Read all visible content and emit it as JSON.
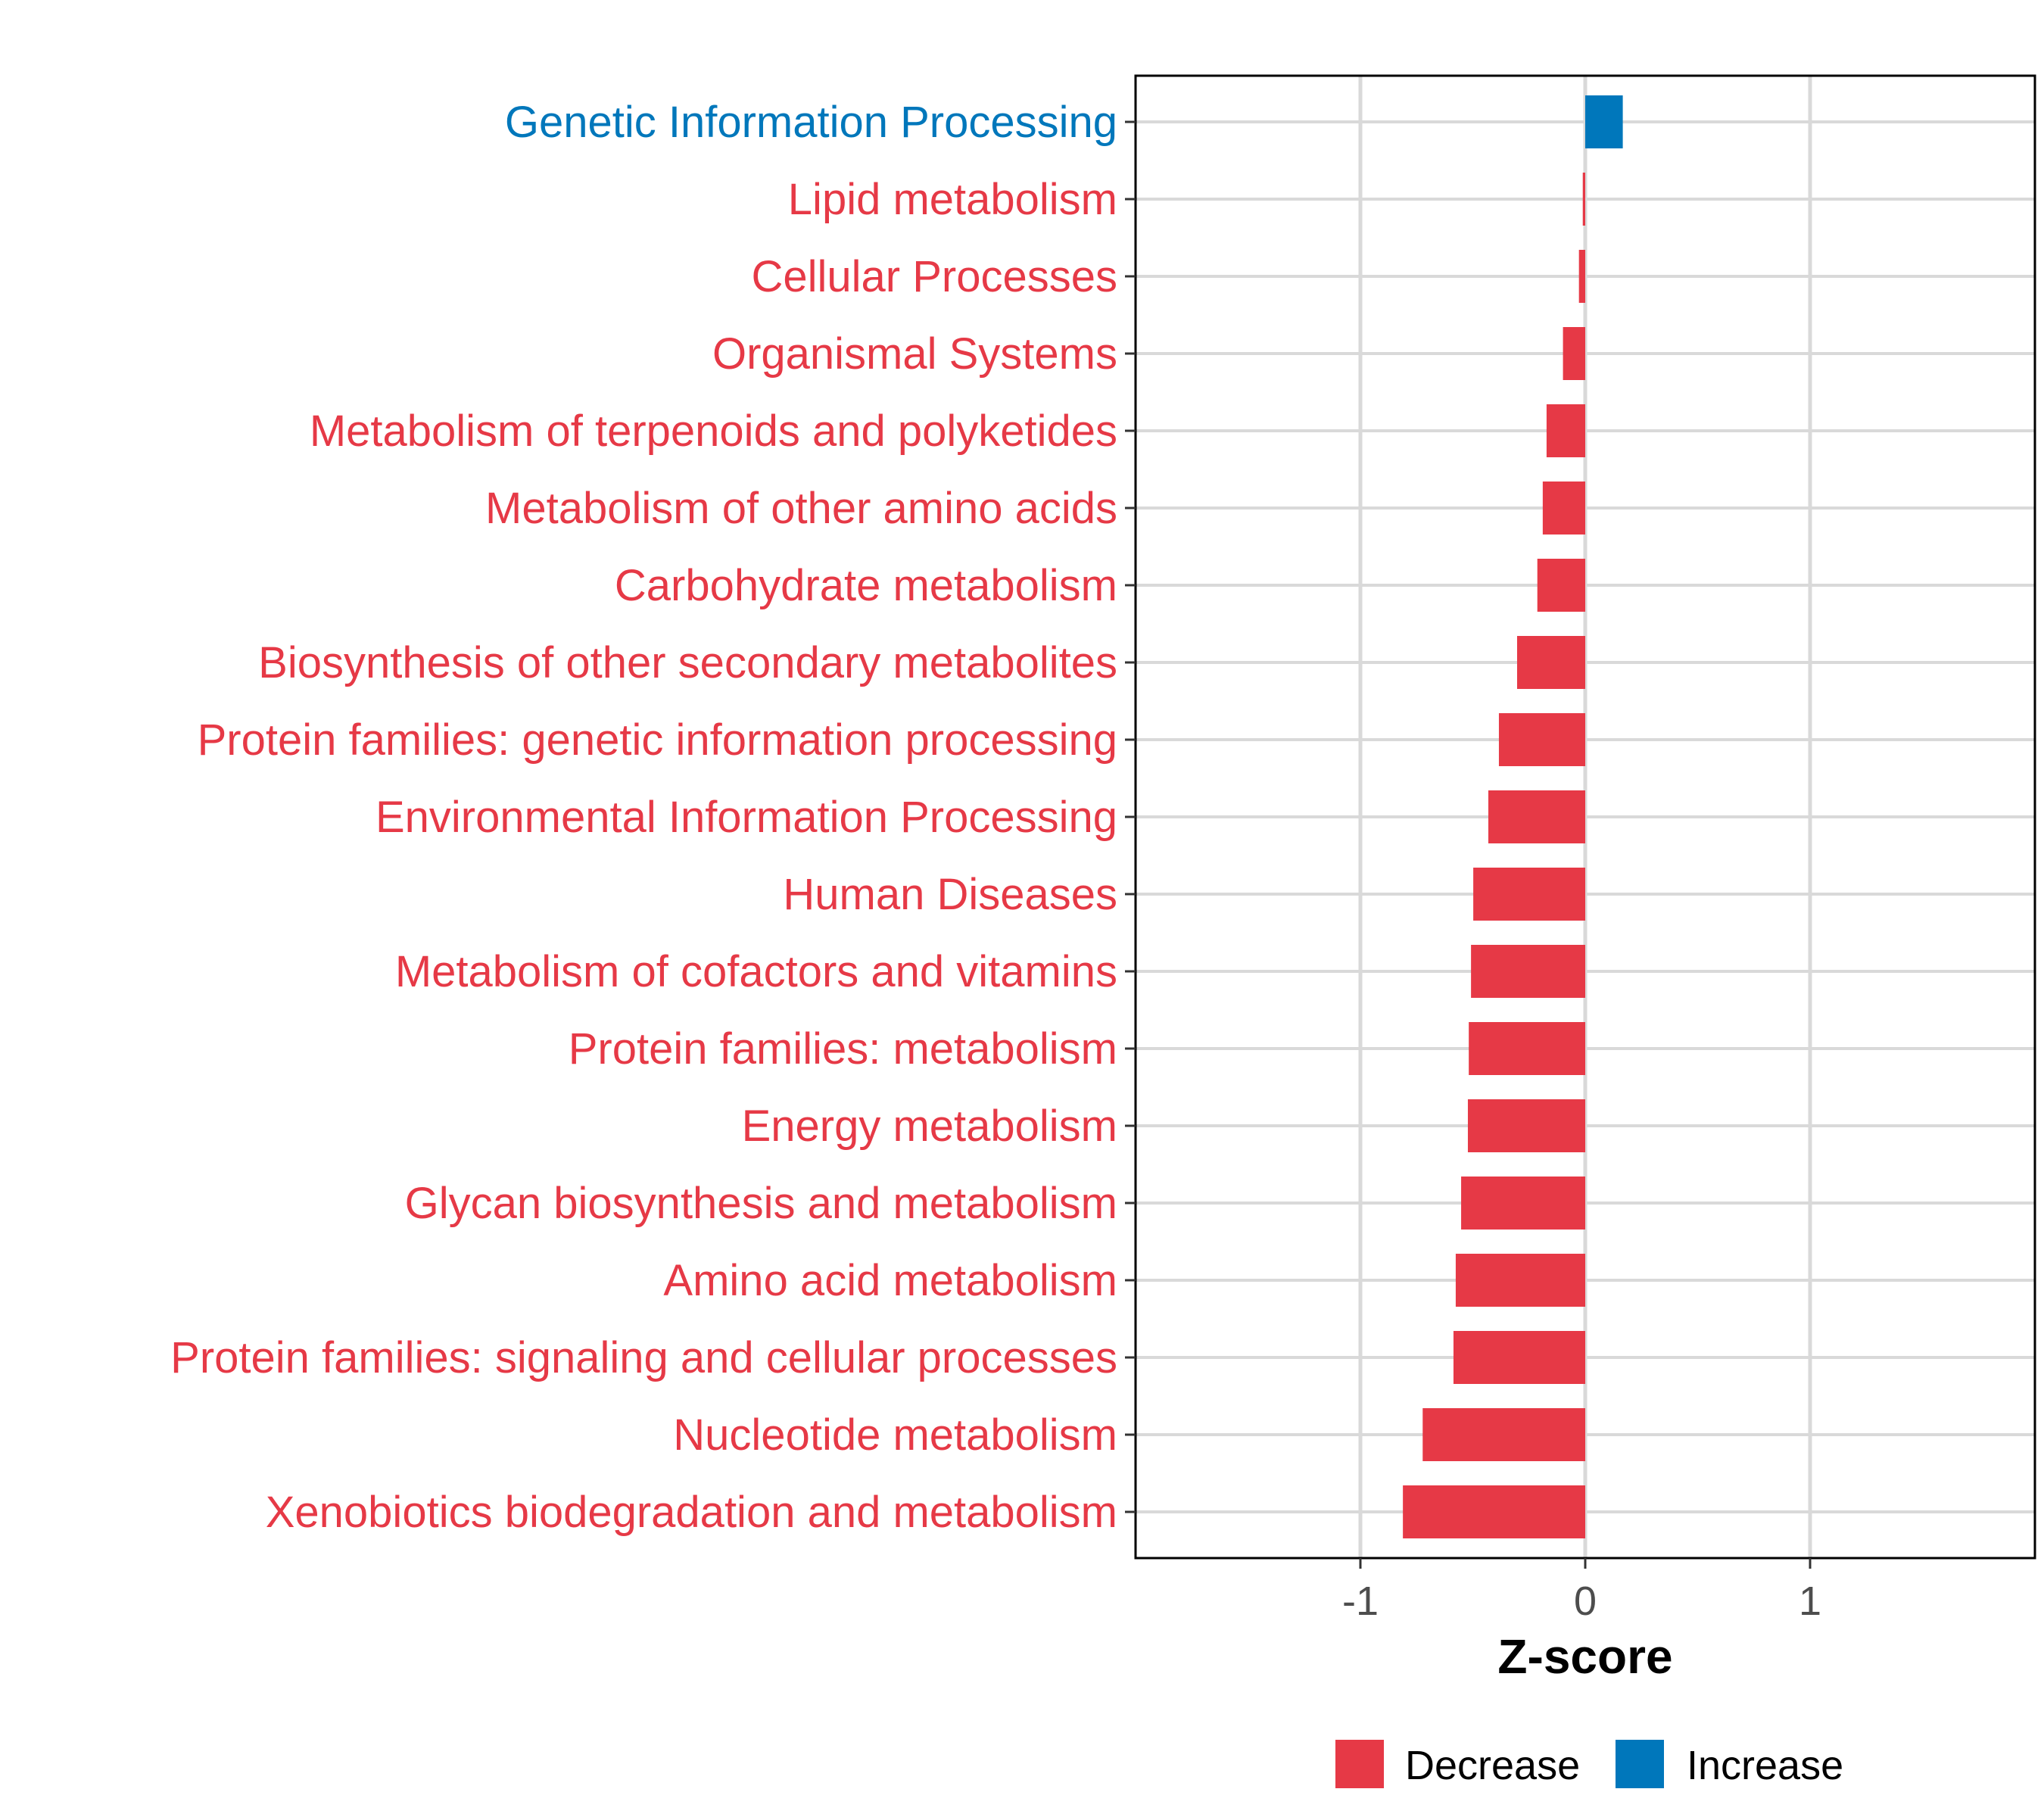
{
  "chart_data": {
    "type": "bar",
    "orientation": "horizontal",
    "xlabel": "Z-score",
    "ylabel": "",
    "xlim": [
      -2,
      2
    ],
    "xticks": [
      -1,
      0,
      1
    ],
    "xtick_labels": [
      "-1",
      "0",
      "1"
    ],
    "grid": true,
    "categories": [
      "Genetic Information Processing",
      "Lipid metabolism",
      "Cellular Processes",
      "Organismal Systems",
      "Metabolism of terpenoids and polyketides",
      "Metabolism of other amino acids",
      "Carbohydrate metabolism",
      "Biosynthesis of other secondary metabolites",
      "Protein families: genetic information processing",
      "Environmental Information Processing",
      "Human Diseases",
      "Metabolism of cofactors and vitamins",
      "Protein families: metabolism",
      "Energy metabolism",
      "Glycan biosynthesis and metabolism",
      "Amino acid metabolism",
      "Protein families: signaling and cellular processes",
      "Nucleotide metabolism",
      "Xenobiotics biodegradation and metabolism"
    ],
    "values": [
      0.167,
      -0.011,
      -0.028,
      -0.099,
      -0.172,
      -0.189,
      -0.213,
      -0.303,
      -0.384,
      -0.431,
      -0.498,
      -0.508,
      -0.518,
      -0.522,
      -0.552,
      -0.576,
      -0.586,
      -0.723,
      -0.811
    ],
    "legend": {
      "placement": "bottom",
      "entries": [
        {
          "label": "Decrease",
          "color": "#E63946"
        },
        {
          "label": "Increase",
          "color": "#0077BB"
        }
      ]
    }
  }
}
